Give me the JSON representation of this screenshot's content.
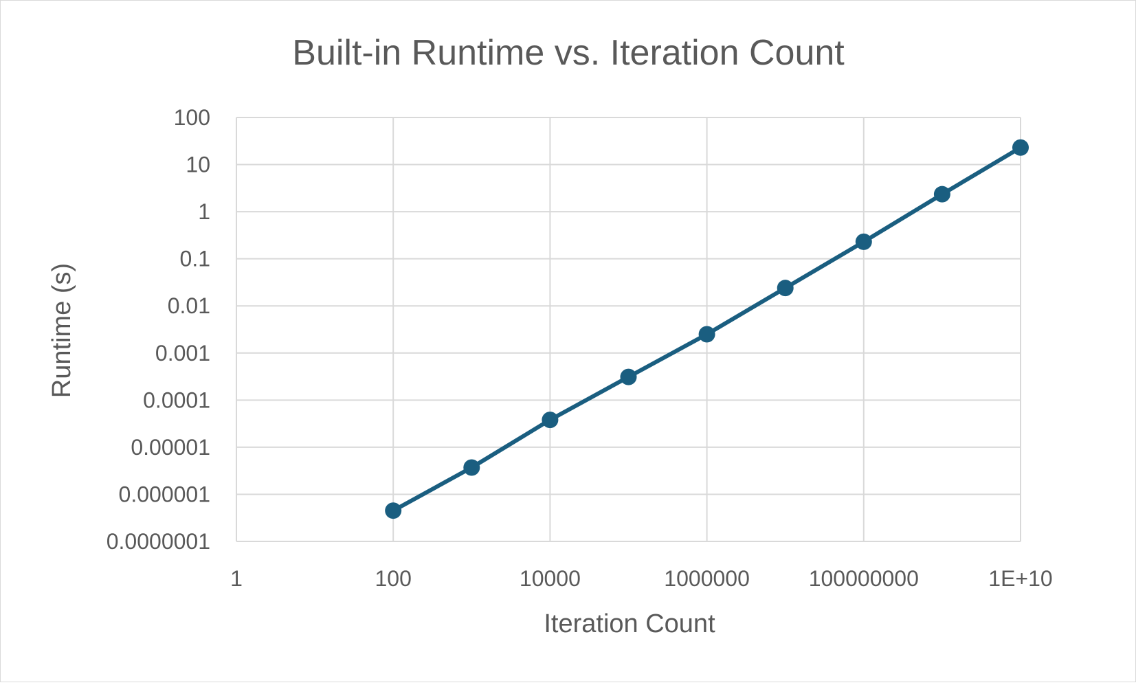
{
  "chart_data": {
    "type": "line",
    "title": "Built-in Runtime vs. Iteration Count",
    "xlabel": "Iteration Count",
    "ylabel": "Runtime (s)",
    "x_scale": "log",
    "y_scale": "log",
    "xlim": [
      1,
      10000000000
    ],
    "ylim": [
      1e-07,
      100
    ],
    "x_tick_values": [
      1,
      100,
      10000,
      1000000,
      100000000,
      10000000000
    ],
    "x_tick_labels": [
      "1",
      "100",
      "10000",
      "1000000",
      "100000000",
      "1E+10"
    ],
    "y_tick_values": [
      1e-07,
      1e-06,
      1e-05,
      0.0001,
      0.001,
      0.01,
      0.1,
      1,
      10,
      100
    ],
    "y_tick_labels": [
      "0.0000001",
      "0.000001",
      "0.00001",
      "0.0001",
      "0.001",
      "0.01",
      "0.1",
      "1",
      "10",
      "100"
    ],
    "grid": true,
    "legend": "none",
    "series": [
      {
        "color": "#1a5e80",
        "marker": "circle",
        "x": [
          100,
          1000,
          10000,
          100000,
          1000000,
          10000000,
          100000000,
          1000000000,
          10000000000
        ],
        "y": [
          4.5e-07,
          3.7e-06,
          3.8e-05,
          0.00031,
          0.0025,
          0.024,
          0.23,
          2.35,
          23
        ]
      }
    ]
  },
  "colors": {
    "line": "#1a5e80",
    "grid": "#d9d9d9",
    "text": "#595959"
  }
}
